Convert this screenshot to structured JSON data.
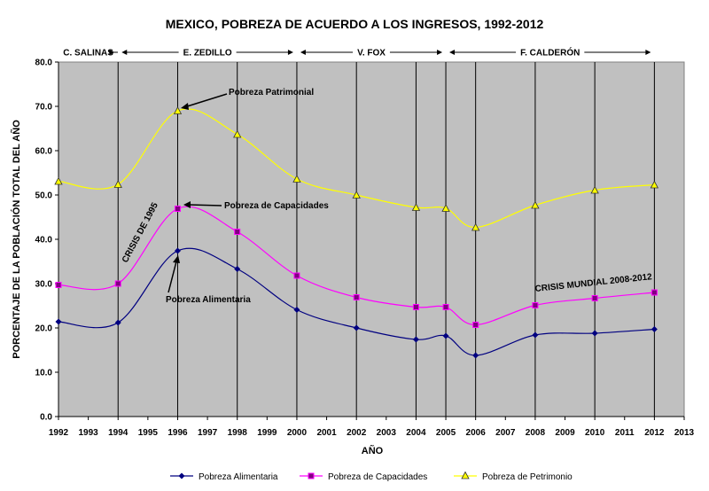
{
  "chart_data": {
    "type": "line",
    "title": "MEXICO, POBREZA DE ACUERDO A LOS INGRESOS, 1992-2012",
    "xlabel": "AÑO",
    "ylabel": "PORCENTAJE DE LA POBLACIÓN TOTAL DEL AÑO",
    "ylim": [
      0,
      80
    ],
    "yticks": [
      "0.0",
      "10.0",
      "20.0",
      "30.0",
      "40.0",
      "50.0",
      "60.0",
      "70.0",
      "80.0"
    ],
    "xticks": [
      "1992",
      "1993",
      "1994",
      "1995",
      "1996",
      "1997",
      "1998",
      "1999",
      "2000",
      "2001",
      "2002",
      "2003",
      "2004",
      "2005",
      "2006",
      "2007",
      "2008",
      "2009",
      "2010",
      "2011",
      "2012",
      "2013"
    ],
    "grid": "vertical",
    "legend_position": "bottom",
    "background": "#c0c0c0",
    "x": [
      1992,
      1994,
      1996,
      1998,
      2000,
      2002,
      2004,
      2005,
      2006,
      2008,
      2010,
      2012
    ],
    "series": [
      {
        "name": "Pobreza Alimentaria",
        "color": "#000080",
        "marker": "diamond",
        "values": [
          21.4,
          21.2,
          37.4,
          33.3,
          24.1,
          20.0,
          17.4,
          18.2,
          13.8,
          18.4,
          18.8,
          19.7
        ]
      },
      {
        "name": "Pobreza de Capacidades",
        "color": "#ff00ff",
        "marker": "square",
        "values": [
          29.7,
          30.0,
          46.9,
          41.7,
          31.8,
          26.9,
          24.7,
          24.7,
          20.7,
          25.1,
          26.7,
          28.0
        ]
      },
      {
        "name": "Pobreza de Petrimonio",
        "color": "#ffff00",
        "marker": "triangle",
        "values": [
          53.1,
          52.4,
          69.0,
          63.7,
          53.6,
          50.0,
          47.2,
          47.0,
          42.7,
          47.7,
          51.1,
          52.3
        ]
      }
    ],
    "periods": [
      {
        "label": "C. SALINAS",
        "from": 1992,
        "to": 1994
      },
      {
        "label": "E. ZEDILLO",
        "from": 1994,
        "to": 2000
      },
      {
        "label": "V. FOX",
        "from": 2000,
        "to": 2005
      },
      {
        "label": "F. CALDERÓN",
        "from": 2005,
        "to": 2012
      }
    ],
    "annotations": {
      "patrimonial": "Pobreza Patrimonial",
      "capacidades": "Pobreza de Capacidades",
      "alimentaria": "Pobreza Alimentaria",
      "crisis_1995": "CRISIS DE 1995",
      "crisis_mundial": "CRISIS MUNDIAL 2008-2012"
    }
  }
}
